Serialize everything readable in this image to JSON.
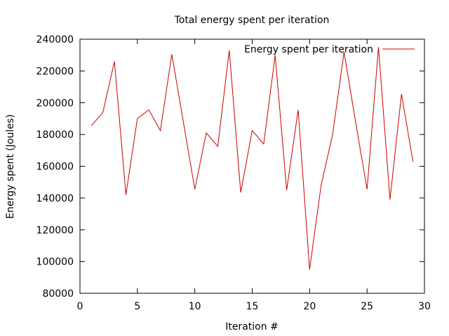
{
  "chart_data": {
    "type": "line",
    "title": "Total energy spent per iteration",
    "xlabel": "Iteration #",
    "ylabel": "Energy spent (Joules)",
    "xlim": [
      0,
      30
    ],
    "ylim": [
      80000,
      240000
    ],
    "xticks": [
      0,
      5,
      10,
      15,
      20,
      25,
      30
    ],
    "yticks": [
      80000,
      100000,
      120000,
      140000,
      160000,
      180000,
      200000,
      220000,
      240000
    ],
    "grid": false,
    "legend_position": "top-right",
    "series": [
      {
        "name": "Energy spent per iteration",
        "color": "#cc0000",
        "x": [
          1,
          2,
          3,
          4,
          5,
          6,
          7,
          8,
          9,
          10,
          11,
          12,
          13,
          14,
          15,
          16,
          17,
          18,
          19,
          20,
          21,
          22,
          23,
          24,
          25,
          26,
          27,
          28,
          29
        ],
        "values": [
          185500,
          194000,
          226000,
          142000,
          190000,
          195500,
          182500,
          230500,
          188000,
          145500,
          181000,
          172500,
          233000,
          143500,
          182500,
          174000,
          230000,
          145000,
          195500,
          95000,
          148000,
          180000,
          232000,
          188000,
          145500,
          235000,
          139000,
          205500,
          163000
        ]
      }
    ]
  }
}
